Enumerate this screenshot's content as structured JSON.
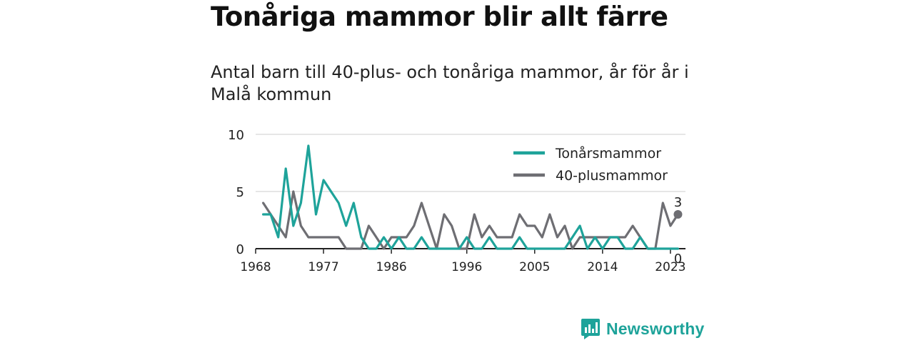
{
  "title": "Tonåriga mammor blir allt färre",
  "subtitle": "Antal barn till 40-plus- och tonåriga mammor, år för år i Malå kommun",
  "brand": "Newsworthy",
  "colors": {
    "teen": "#1ea39a",
    "plus40": "#6e6e73",
    "grid": "#dddddd",
    "axis": "#222222"
  },
  "chart_data": {
    "type": "line",
    "x": [
      1969,
      1970,
      1971,
      1972,
      1973,
      1974,
      1975,
      1976,
      1977,
      1978,
      1979,
      1980,
      1981,
      1982,
      1983,
      1984,
      1985,
      1986,
      1987,
      1988,
      1989,
      1990,
      1991,
      1992,
      1993,
      1994,
      1995,
      1996,
      1997,
      1998,
      1999,
      2000,
      2001,
      2002,
      2003,
      2004,
      2005,
      2006,
      2007,
      2008,
      2009,
      2010,
      2011,
      2012,
      2013,
      2014,
      2015,
      2016,
      2017,
      2018,
      2019,
      2020,
      2021,
      2022,
      2023,
      2024
    ],
    "series": [
      {
        "name": "Tonårsmammor",
        "color": "#1ea39a",
        "values": [
          3,
          3,
          1,
          7,
          2,
          4,
          9,
          3,
          6,
          5,
          4,
          2,
          4,
          1,
          0,
          0,
          1,
          0,
          1,
          0,
          0,
          1,
          0,
          0,
          0,
          0,
          0,
          1,
          0,
          0,
          1,
          0,
          0,
          0,
          1,
          0,
          0,
          0,
          0,
          0,
          0,
          1,
          2,
          0,
          1,
          0,
          1,
          1,
          0,
          0,
          1,
          0,
          0,
          0,
          0,
          0
        ]
      },
      {
        "name": "40-plusmammor",
        "color": "#6e6e73",
        "values": [
          4,
          3,
          2,
          1,
          5,
          2,
          1,
          1,
          1,
          1,
          1,
          0,
          0,
          0,
          2,
          1,
          0,
          1,
          1,
          1,
          2,
          4,
          2,
          0,
          3,
          2,
          0,
          0,
          3,
          1,
          2,
          1,
          1,
          1,
          3,
          2,
          2,
          1,
          3,
          1,
          2,
          0,
          1,
          1,
          1,
          1,
          1,
          1,
          1,
          2,
          1,
          0,
          0,
          4,
          2,
          3
        ]
      }
    ],
    "xticks": [
      1968,
      1977,
      1986,
      1996,
      2005,
      2014,
      2023
    ],
    "yticks": [
      0,
      5,
      10
    ],
    "ylim": [
      0,
      10
    ],
    "xlim": [
      1968,
      2025
    ],
    "grid": true,
    "legend": "top-right",
    "end_labels": [
      {
        "series": "40-plusmammor",
        "value": "3"
      },
      {
        "series": "Tonårsmammor",
        "value": "0"
      }
    ]
  }
}
